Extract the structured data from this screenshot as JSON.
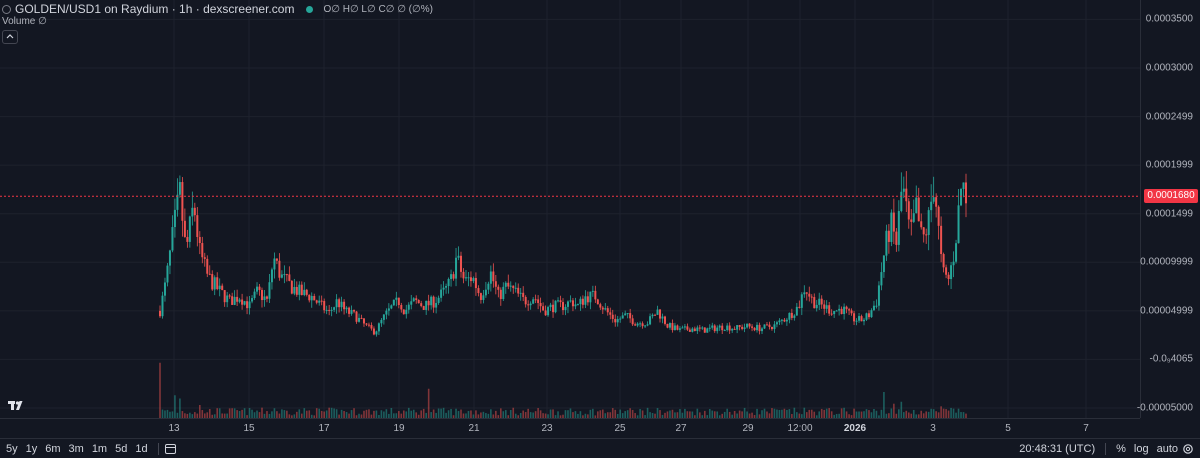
{
  "legend": {
    "title": "GOLDEN/USD1 on Raydium · 1h · dexscreener.com",
    "ohlc": "O∅ H∅ L∅ C∅ ∅ (∅%)",
    "volume_label": "Volume  ∅",
    "status_color": "#26a69a",
    "menu_icon": "chevron-up-icon",
    "logo_icon": "tradingview-logo-icon"
  },
  "price_axis": {
    "labels": [
      "0.0003500",
      "0.0003000",
      "0.0002499",
      "0.0001999",
      "0.0001499",
      "0.00009999",
      "0.00004999",
      "-0.0₉4065",
      "-0.00005000"
    ],
    "current_price": "0.0001680",
    "current_price_color": "#f23645"
  },
  "time_axis": {
    "labels": [
      "13",
      "15",
      "17",
      "19",
      "21",
      "23",
      "25",
      "27",
      "29",
      "12:00",
      "2026",
      "3",
      "5",
      "7"
    ]
  },
  "bottom_bar": {
    "ranges": [
      "5y",
      "1y",
      "6m",
      "3m",
      "1m",
      "5d",
      "1d"
    ],
    "calendar_icon": "calendar-range-icon",
    "time": "20:48:31 (UTC)",
    "percent_label": "%",
    "log_label": "log",
    "auto_label": "auto",
    "settings_icon": "settings-gear-icon"
  },
  "colors": {
    "up": "#26a69a",
    "down": "#ef5350",
    "background": "#131722",
    "grid": "#1e222d"
  },
  "chart_data": {
    "type": "candlestick",
    "pair": "GOLDEN/USD1",
    "interval": "1h",
    "y_range": [
      -5e-05,
      0.00037
    ],
    "current_price": 0.000168,
    "price_path": [
      [
        0,
        5e-05
      ],
      [
        6,
        8e-05
      ],
      [
        14,
        0.000135
      ],
      [
        20,
        0.00017
      ],
      [
        26,
        0.00011
      ],
      [
        34,
        0.00016
      ],
      [
        40,
        0.00011
      ],
      [
        48,
        8.5e-05
      ],
      [
        60,
        7e-05
      ],
      [
        70,
        6e-05
      ],
      [
        80,
        6.5e-05
      ],
      [
        90,
        5.5e-05
      ],
      [
        98,
        7e-05
      ],
      [
        108,
        6e-05
      ],
      [
        114,
        0.000105
      ],
      [
        122,
        8.5e-05
      ],
      [
        132,
        7.5e-05
      ],
      [
        142,
        6.8e-05
      ],
      [
        152,
        6.5e-05
      ],
      [
        162,
        5.5e-05
      ],
      [
        170,
        4.8e-05
      ],
      [
        178,
        6e-05
      ],
      [
        186,
        5e-05
      ],
      [
        196,
        4.5e-05
      ],
      [
        206,
        3.5e-05
      ],
      [
        216,
        2.8e-05
      ],
      [
        226,
        4.5e-05
      ],
      [
        234,
        5.5e-05
      ],
      [
        240,
        6e-05
      ],
      [
        246,
        5e-05
      ],
      [
        256,
        6e-05
      ],
      [
        266,
        5.5e-05
      ],
      [
        276,
        6e-05
      ],
      [
        286,
        7e-05
      ],
      [
        292,
        8e-05
      ],
      [
        298,
        0.000105
      ],
      [
        306,
        8e-05
      ],
      [
        314,
        8.5e-05
      ],
      [
        322,
        6.5e-05
      ],
      [
        332,
        9e-05
      ],
      [
        340,
        6.5e-05
      ],
      [
        348,
        7.5e-05
      ],
      [
        356,
        7e-05
      ],
      [
        366,
        6e-05
      ],
      [
        376,
        6.5e-05
      ],
      [
        386,
        5e-05
      ],
      [
        396,
        5.5e-05
      ],
      [
        404,
        5.5e-05
      ],
      [
        414,
        6e-05
      ],
      [
        420,
        5.5e-05
      ],
      [
        428,
        6.5e-05
      ],
      [
        438,
        6.5e-05
      ],
      [
        448,
        5e-05
      ],
      [
        458,
        4e-05
      ],
      [
        468,
        4.5e-05
      ],
      [
        478,
        3.8e-05
      ],
      [
        490,
        3.8e-05
      ],
      [
        500,
        5e-05
      ],
      [
        510,
        3.5e-05
      ],
      [
        522,
        3e-05
      ],
      [
        534,
        3.2e-05
      ],
      [
        546,
        3e-05
      ],
      [
        556,
        3.2e-05
      ],
      [
        568,
        3.4e-05
      ],
      [
        578,
        3.2e-05
      ],
      [
        590,
        3.4e-05
      ],
      [
        604,
        3.2e-05
      ],
      [
        618,
        3.5e-05
      ],
      [
        632,
        4.5e-05
      ],
      [
        642,
        5.5e-05
      ],
      [
        648,
        7.5e-05
      ],
      [
        656,
        6e-05
      ],
      [
        666,
        5.5e-05
      ],
      [
        676,
        5e-05
      ],
      [
        686,
        5.2e-05
      ],
      [
        696,
        4.2e-05
      ],
      [
        704,
        4e-05
      ],
      [
        712,
        4.5e-05
      ],
      [
        720,
        6e-05
      ],
      [
        728,
        0.00011
      ],
      [
        734,
        0.00014
      ],
      [
        740,
        0.00012
      ],
      [
        746,
        0.00018
      ],
      [
        754,
        0.000125
      ],
      [
        760,
        0.000155
      ],
      [
        766,
        0.00012
      ],
      [
        772,
        0.00014
      ],
      [
        778,
        0.000185
      ],
      [
        786,
        9e-05
      ],
      [
        792,
        8e-05
      ],
      [
        798,
        0.00011
      ],
      [
        806,
        0.000185
      ],
      [
        810,
        0.000168
      ]
    ],
    "volume_spikes": [
      [
        0,
        0.85
      ],
      [
        16,
        0.35
      ],
      [
        20,
        0.3
      ],
      [
        40,
        0.2
      ],
      [
        114,
        0.15
      ],
      [
        270,
        0.45
      ],
      [
        410,
        0.12
      ],
      [
        728,
        0.4
      ],
      [
        738,
        0.22
      ],
      [
        746,
        0.25
      ],
      [
        786,
        0.18
      ]
    ]
  }
}
